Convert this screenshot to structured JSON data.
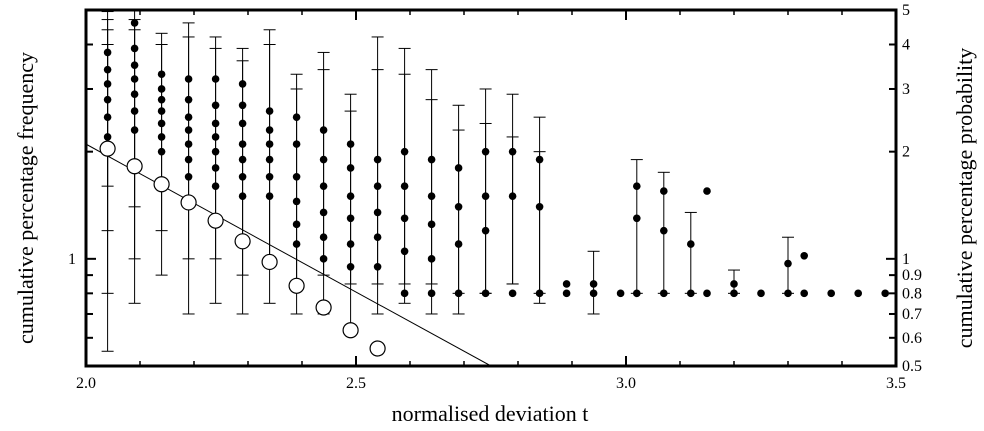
{
  "chart_data": {
    "type": "scatter",
    "title": "",
    "xlabel": "normalised deviation  t",
    "ylabel_left": "cumulative percentage frequency",
    "ylabel_right": "cumulative percentage probability",
    "xlim": [
      2.0,
      3.5
    ],
    "ylim": [
      0.5,
      5
    ],
    "y_scale": "log",
    "grid": false,
    "x_ticks": [
      "2.0",
      "2.5",
      "3.0",
      "3.5"
    ],
    "x_tick_values": [
      2.0,
      2.5,
      3.0,
      3.5
    ],
    "y_left_ticks": [
      "1"
    ],
    "y_left_tick_values": [
      1
    ],
    "y_right_ticks": [
      "0.5",
      "0.6",
      "0.7",
      "0.8",
      "0.9",
      "1",
      "2",
      "3",
      "4",
      "5"
    ],
    "y_right_tick_values": [
      0.5,
      0.6,
      0.7,
      0.8,
      0.9,
      1,
      2,
      3,
      4,
      5
    ],
    "fit_line": {
      "x": [
        2.0,
        2.75
      ],
      "y": [
        2.1,
        0.5
      ]
    },
    "series": [
      {
        "marker": "open-circle",
        "points": [
          {
            "x": 2.04,
            "y": 2.04
          },
          {
            "x": 2.09,
            "y": 1.82
          },
          {
            "x": 2.14,
            "y": 1.62
          },
          {
            "x": 2.19,
            "y": 1.44
          },
          {
            "x": 2.24,
            "y": 1.28
          },
          {
            "x": 2.29,
            "y": 1.12
          },
          {
            "x": 2.34,
            "y": 0.98
          },
          {
            "x": 2.39,
            "y": 0.84
          },
          {
            "x": 2.44,
            "y": 0.73
          },
          {
            "x": 2.49,
            "y": 0.63
          },
          {
            "x": 2.54,
            "y": 0.56
          }
        ]
      },
      {
        "marker": "filled-circle",
        "points": [
          {
            "x": 2.04,
            "y": 3.8,
            "lo": 0.55,
            "hi": 4.95
          },
          {
            "x": 2.04,
            "y": 3.4,
            "lo": 0.8,
            "hi": 4.7
          },
          {
            "x": 2.04,
            "y": 3.1,
            "lo": 1.2,
            "hi": 4.4
          },
          {
            "x": 2.04,
            "y": 2.8,
            "lo": 1.6,
            "hi": 4.0
          },
          {
            "x": 2.04,
            "y": 2.5
          },
          {
            "x": 2.04,
            "y": 2.2
          },
          {
            "x": 2.09,
            "y": 4.6,
            "lo": 0.75,
            "hi": 5.0
          },
          {
            "x": 2.09,
            "y": 3.9,
            "lo": 1.0,
            "hi": 4.7
          },
          {
            "x": 2.09,
            "y": 3.5,
            "lo": 1.4,
            "hi": 4.4
          },
          {
            "x": 2.09,
            "y": 3.2
          },
          {
            "x": 2.09,
            "y": 2.9
          },
          {
            "x": 2.09,
            "y": 2.6
          },
          {
            "x": 2.09,
            "y": 2.3
          },
          {
            "x": 2.14,
            "y": 3.3,
            "lo": 0.9,
            "hi": 4.3
          },
          {
            "x": 2.14,
            "y": 3.0,
            "lo": 1.2,
            "hi": 4.0
          },
          {
            "x": 2.14,
            "y": 2.8
          },
          {
            "x": 2.14,
            "y": 2.6
          },
          {
            "x": 2.14,
            "y": 2.4
          },
          {
            "x": 2.14,
            "y": 2.2
          },
          {
            "x": 2.14,
            "y": 2.0
          },
          {
            "x": 2.19,
            "y": 3.2,
            "lo": 0.7,
            "hi": 4.6
          },
          {
            "x": 2.19,
            "y": 2.8,
            "lo": 1.0,
            "hi": 4.2
          },
          {
            "x": 2.19,
            "y": 2.5
          },
          {
            "x": 2.19,
            "y": 2.3
          },
          {
            "x": 2.19,
            "y": 2.1
          },
          {
            "x": 2.19,
            "y": 1.9
          },
          {
            "x": 2.19,
            "y": 1.7
          },
          {
            "x": 2.24,
            "y": 3.2,
            "lo": 0.75,
            "hi": 4.2
          },
          {
            "x": 2.24,
            "y": 2.7,
            "lo": 1.0,
            "hi": 3.9
          },
          {
            "x": 2.24,
            "y": 2.4
          },
          {
            "x": 2.24,
            "y": 2.2
          },
          {
            "x": 2.24,
            "y": 2.0
          },
          {
            "x": 2.24,
            "y": 1.8
          },
          {
            "x": 2.24,
            "y": 1.6
          },
          {
            "x": 2.29,
            "y": 3.1,
            "lo": 0.7,
            "hi": 3.9
          },
          {
            "x": 2.29,
            "y": 2.7,
            "lo": 0.9,
            "hi": 3.6
          },
          {
            "x": 2.29,
            "y": 2.4
          },
          {
            "x": 2.29,
            "y": 2.1
          },
          {
            "x": 2.29,
            "y": 1.9
          },
          {
            "x": 2.29,
            "y": 1.7
          },
          {
            "x": 2.29,
            "y": 1.5
          },
          {
            "x": 2.34,
            "y": 2.6,
            "lo": 0.75,
            "hi": 4.4
          },
          {
            "x": 2.34,
            "y": 2.3,
            "lo": 1.0,
            "hi": 4.0
          },
          {
            "x": 2.34,
            "y": 2.1
          },
          {
            "x": 2.34,
            "y": 1.9
          },
          {
            "x": 2.34,
            "y": 1.7
          },
          {
            "x": 2.34,
            "y": 1.5
          },
          {
            "x": 2.39,
            "y": 2.5,
            "lo": 0.7,
            "hi": 3.3
          },
          {
            "x": 2.39,
            "y": 2.1,
            "lo": 0.85,
            "hi": 3.0
          },
          {
            "x": 2.39,
            "y": 1.7
          },
          {
            "x": 2.39,
            "y": 1.45
          },
          {
            "x": 2.39,
            "y": 1.25
          },
          {
            "x": 2.39,
            "y": 1.1
          },
          {
            "x": 2.44,
            "y": 2.3,
            "lo": 0.7,
            "hi": 3.8
          },
          {
            "x": 2.44,
            "y": 1.9,
            "lo": 0.9,
            "hi": 3.4
          },
          {
            "x": 2.44,
            "y": 1.6
          },
          {
            "x": 2.44,
            "y": 1.35
          },
          {
            "x": 2.44,
            "y": 1.15
          },
          {
            "x": 2.44,
            "y": 1.0
          },
          {
            "x": 2.49,
            "y": 2.1,
            "lo": 0.65,
            "hi": 2.9
          },
          {
            "x": 2.49,
            "y": 1.8,
            "lo": 0.85,
            "hi": 2.6
          },
          {
            "x": 2.49,
            "y": 1.5
          },
          {
            "x": 2.49,
            "y": 1.3
          },
          {
            "x": 2.49,
            "y": 1.1
          },
          {
            "x": 2.49,
            "y": 0.95
          },
          {
            "x": 2.54,
            "y": 1.9,
            "lo": 0.7,
            "hi": 4.2
          },
          {
            "x": 2.54,
            "y": 1.6,
            "lo": 0.85,
            "hi": 3.4
          },
          {
            "x": 2.54,
            "y": 1.35
          },
          {
            "x": 2.54,
            "y": 1.15
          },
          {
            "x": 2.54,
            "y": 0.95
          },
          {
            "x": 2.59,
            "y": 2.0,
            "lo": 0.75,
            "hi": 3.9
          },
          {
            "x": 2.59,
            "y": 1.6,
            "lo": 0.85,
            "hi": 3.3
          },
          {
            "x": 2.59,
            "y": 1.3
          },
          {
            "x": 2.59,
            "y": 1.05
          },
          {
            "x": 2.59,
            "y": 0.8
          },
          {
            "x": 2.64,
            "y": 1.9,
            "lo": 0.7,
            "hi": 3.4
          },
          {
            "x": 2.64,
            "y": 1.5,
            "lo": 0.85,
            "hi": 2.8
          },
          {
            "x": 2.64,
            "y": 1.25
          },
          {
            "x": 2.64,
            "y": 1.0
          },
          {
            "x": 2.64,
            "y": 0.8
          },
          {
            "x": 2.69,
            "y": 1.8,
            "lo": 0.7,
            "hi": 2.7
          },
          {
            "x": 2.69,
            "y": 1.4,
            "lo": 0.8,
            "hi": 2.3
          },
          {
            "x": 2.69,
            "y": 1.1
          },
          {
            "x": 2.69,
            "y": 0.8
          },
          {
            "x": 2.74,
            "y": 2.0,
            "lo": 0.8,
            "hi": 3.0
          },
          {
            "x": 2.74,
            "y": 1.5,
            "lo": 0.8,
            "hi": 2.4
          },
          {
            "x": 2.74,
            "y": 1.2
          },
          {
            "x": 2.74,
            "y": 0.8
          },
          {
            "x": 2.79,
            "y": 2.0,
            "lo": 0.85,
            "hi": 2.9
          },
          {
            "x": 2.79,
            "y": 1.5,
            "lo": 0.85,
            "hi": 2.2
          },
          {
            "x": 2.79,
            "y": 0.8
          },
          {
            "x": 2.84,
            "y": 1.9,
            "lo": 0.75,
            "hi": 2.5
          },
          {
            "x": 2.84,
            "y": 1.4,
            "lo": 0.8,
            "hi": 2.0
          },
          {
            "x": 2.84,
            "y": 0.8
          },
          {
            "x": 2.89,
            "y": 0.85
          },
          {
            "x": 2.89,
            "y": 0.8
          },
          {
            "x": 2.94,
            "y": 0.85,
            "lo": 0.7,
            "hi": 1.05
          },
          {
            "x": 2.94,
            "y": 0.8
          },
          {
            "x": 2.99,
            "y": 0.8
          },
          {
            "x": 3.02,
            "y": 1.6,
            "lo": 0.8,
            "hi": 1.9
          },
          {
            "x": 3.02,
            "y": 1.3
          },
          {
            "x": 3.02,
            "y": 0.8
          },
          {
            "x": 3.07,
            "y": 1.55,
            "lo": 0.8,
            "hi": 1.75
          },
          {
            "x": 3.07,
            "y": 1.2
          },
          {
            "x": 3.07,
            "y": 0.8
          },
          {
            "x": 3.12,
            "y": 1.1,
            "lo": 0.8,
            "hi": 1.35
          },
          {
            "x": 3.12,
            "y": 0.8
          },
          {
            "x": 3.15,
            "y": 1.55
          },
          {
            "x": 3.15,
            "y": 0.8
          },
          {
            "x": 3.2,
            "y": 0.85,
            "lo": 0.8,
            "hi": 0.93
          },
          {
            "x": 3.2,
            "y": 0.8
          },
          {
            "x": 3.25,
            "y": 0.8
          },
          {
            "x": 3.3,
            "y": 0.97,
            "lo": 0.8,
            "hi": 1.15
          },
          {
            "x": 3.3,
            "y": 0.8
          },
          {
            "x": 3.33,
            "y": 1.02
          },
          {
            "x": 3.33,
            "y": 0.8
          },
          {
            "x": 3.38,
            "y": 0.8
          },
          {
            "x": 3.43,
            "y": 0.8
          },
          {
            "x": 3.48,
            "y": 0.8
          }
        ]
      }
    ]
  }
}
